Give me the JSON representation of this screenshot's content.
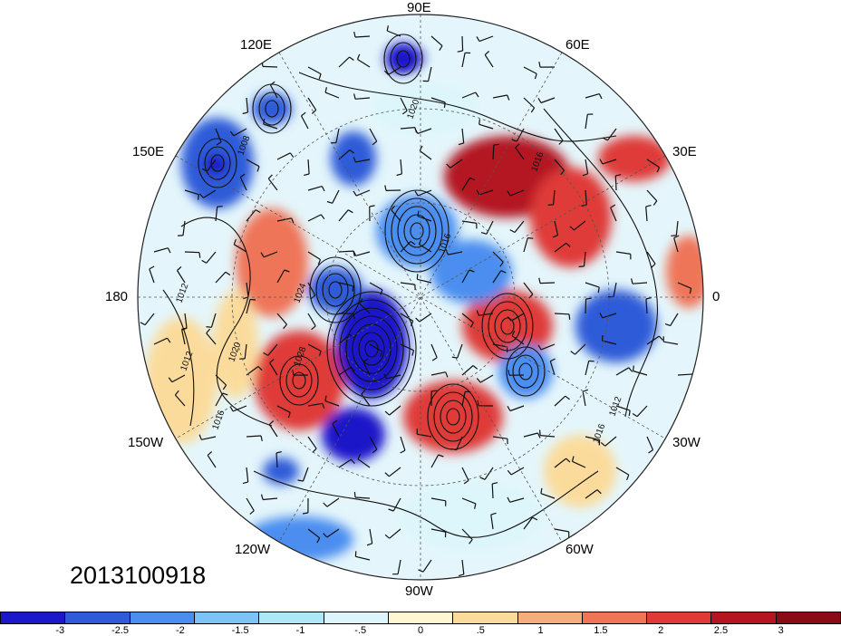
{
  "timestamp": "2013100918",
  "longitude_labels": [
    "90E",
    "60E",
    "30E",
    "0",
    "30W",
    "60W",
    "90W",
    "120W",
    "150W",
    "180",
    "150E",
    "120E"
  ],
  "contour_labels": [
    "1020",
    "1016",
    "1012",
    "1008",
    "1024",
    "1028"
  ],
  "colorbar": {
    "colors": [
      "#1c17c9",
      "#2f5bd8",
      "#4c8ef0",
      "#7ec3f5",
      "#aee8f8",
      "#ddf6fb",
      "#fff6d2",
      "#fbdb9b",
      "#f6ad7c",
      "#ef7559",
      "#df3a37",
      "#b41520",
      "#8a0a16"
    ],
    "tick_labels": [
      "-3",
      "-2.5",
      "-2",
      "-1.5",
      "-1",
      "-.5",
      "0",
      ".5",
      "1",
      "1.5",
      "2",
      "2.5",
      "3"
    ]
  },
  "chart_data": {
    "type": "heatmap",
    "projection": "polar-stereographic (north pole)",
    "field": "anomaly (shaded) with contour lines and wind barbs",
    "contour_levels_labeled": [
      1008,
      1012,
      1016,
      1020,
      1024,
      1028
    ],
    "colorbar_range": [
      -3,
      3
    ],
    "colorbar_step": 0.5
  }
}
